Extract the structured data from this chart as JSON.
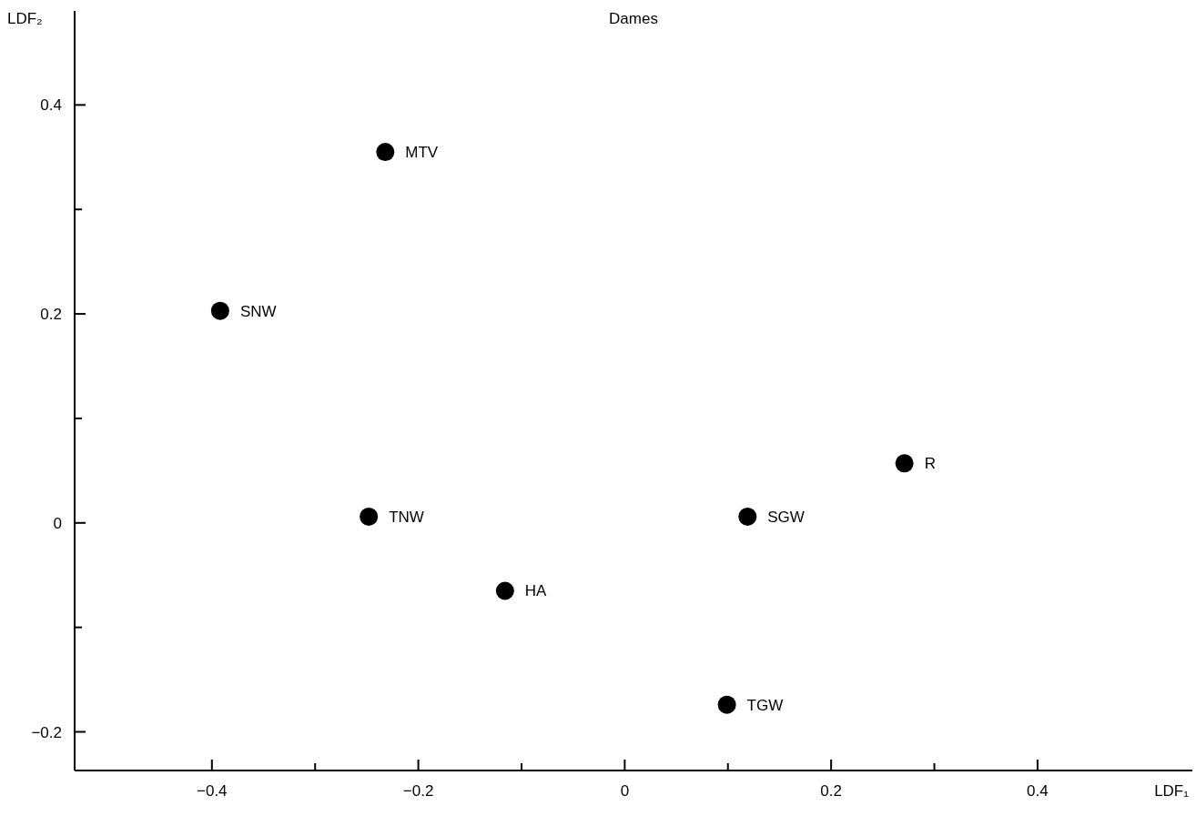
{
  "chart_data": {
    "type": "scatter",
    "title": "Dames",
    "xlabel": "LDF₁",
    "ylabel": "LDF₂",
    "x": [
      -0.232,
      -0.392,
      -0.248,
      -0.116,
      0.119,
      0.271,
      0.099
    ],
    "series": [
      {
        "color": "#000000",
        "values": [
          0.355,
          0.203,
          0.006,
          -0.065,
          0.006,
          0.057,
          -0.174
        ]
      }
    ],
    "annotations": [
      {
        "text": "MTV",
        "x": -0.232,
        "y": 0.355
      },
      {
        "text": "SNW",
        "x": -0.392,
        "y": 0.203
      },
      {
        "text": "TNW",
        "x": -0.248,
        "y": 0.006
      },
      {
        "text": "HA",
        "x": -0.116,
        "y": -0.065
      },
      {
        "text": "SGW",
        "x": 0.119,
        "y": 0.006
      },
      {
        "text": "R",
        "x": 0.271,
        "y": 0.057
      },
      {
        "text": "TGW",
        "x": 0.099,
        "y": -0.174
      }
    ],
    "xlim": [
      -0.533,
      0.55
    ],
    "ylim": [
      -0.237,
      0.49
    ],
    "xticks": [
      {
        "value": -0.4,
        "label": "−0.4"
      },
      {
        "value": -0.3,
        "label": null
      },
      {
        "value": -0.2,
        "label": "−0.2"
      },
      {
        "value": -0.1,
        "label": null
      },
      0,
      {
        "value": 0.1,
        "label": null
      },
      0.2,
      {
        "value": 0.3,
        "label": null
      },
      0.4
    ],
    "yticks": [
      {
        "value": -0.2,
        "label": "−0.2"
      },
      {
        "value": -0.1,
        "label": null
      },
      0,
      {
        "value": 0.1,
        "label": null
      },
      0.2,
      {
        "value": 0.3,
        "label": null
      },
      0.4
    ],
    "marker": "circle",
    "grid": false
  }
}
